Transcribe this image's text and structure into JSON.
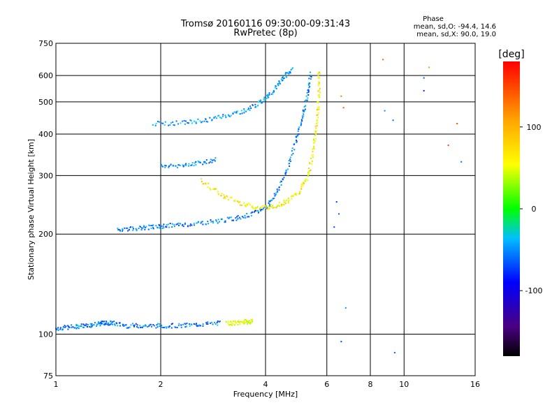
{
  "chart_data": {
    "type": "scatter",
    "title": "Tromsø 20160116 09:30:00-09:31:43",
    "subtitle": "RwPretec (8p)",
    "xlabel": "Frequency [MHz]",
    "ylabel": "Stationary phase Virtual Height [km]",
    "x_scale": "log",
    "y_scale": "log",
    "xlim": [
      1,
      16
    ],
    "ylim": [
      75,
      750
    ],
    "x_ticks": [
      1,
      2,
      4,
      6,
      8,
      10,
      16
    ],
    "y_ticks": [
      75,
      100,
      200,
      300,
      400,
      500,
      600,
      750
    ],
    "grid": true,
    "colorbar": {
      "label": "[deg]",
      "ticks": [
        100,
        0,
        -100
      ],
      "range": [
        -180,
        180
      ]
    },
    "stats": {
      "heading": "Phase",
      "o_line": "mean, sd,O: -94.4, 14.6",
      "x_line": "mean, sd,X:  90.0, 19.0"
    },
    "traces": [
      {
        "name_hint": "E-layer O",
        "phase": -100,
        "points": [
          [
            1.0,
            104
          ],
          [
            1.1,
            105
          ],
          [
            1.2,
            106
          ],
          [
            1.3,
            107
          ],
          [
            1.38,
            108
          ],
          [
            1.45,
            108
          ],
          [
            1.6,
            106
          ],
          [
            1.8,
            106
          ],
          [
            2.0,
            106
          ],
          [
            2.3,
            106
          ],
          [
            2.6,
            107
          ],
          [
            3.0,
            108
          ]
        ]
      },
      {
        "name_hint": "E-layer X",
        "phase": 90,
        "points": [
          [
            3.1,
            108
          ],
          [
            3.3,
            108
          ],
          [
            3.5,
            109
          ],
          [
            3.7,
            109
          ]
        ]
      },
      {
        "name_hint": "F-layer O low",
        "phase": -100,
        "points": [
          [
            1.5,
            207
          ],
          [
            1.7,
            208
          ],
          [
            1.9,
            210
          ],
          [
            2.1,
            212
          ],
          [
            2.4,
            214
          ],
          [
            2.8,
            218
          ],
          [
            3.2,
            222
          ],
          [
            3.6,
            228
          ],
          [
            4.0,
            240
          ],
          [
            4.3,
            265
          ],
          [
            4.6,
            310
          ],
          [
            4.9,
            380
          ],
          [
            5.1,
            450
          ],
          [
            5.3,
            530
          ],
          [
            5.4,
            610
          ]
        ]
      },
      {
        "name_hint": "F-layer X",
        "phase": 100,
        "points": [
          [
            2.6,
            290
          ],
          [
            3.0,
            262
          ],
          [
            3.4,
            248
          ],
          [
            3.8,
            240
          ],
          [
            4.2,
            242
          ],
          [
            4.6,
            250
          ],
          [
            5.0,
            268
          ],
          [
            5.3,
            300
          ],
          [
            5.5,
            360
          ],
          [
            5.6,
            430
          ],
          [
            5.7,
            520
          ],
          [
            5.7,
            620
          ]
        ]
      },
      {
        "name_hint": "F2 echo",
        "phase": -90,
        "points": [
          [
            1.9,
            430
          ],
          [
            2.3,
            432
          ],
          [
            2.7,
            440
          ],
          [
            3.1,
            455
          ],
          [
            3.5,
            470
          ],
          [
            3.9,
            500
          ],
          [
            4.2,
            540
          ],
          [
            4.5,
            590
          ],
          [
            4.8,
            630
          ]
        ]
      },
      {
        "name_hint": "mid echo",
        "phase": -100,
        "points": [
          [
            2.0,
            320
          ],
          [
            2.3,
            322
          ],
          [
            2.6,
            328
          ],
          [
            2.9,
            335
          ]
        ]
      },
      {
        "name_hint": "scatter X",
        "phase": 140,
        "points": [
          [
            8.7,
            670
          ],
          [
            11.8,
            635
          ],
          [
            13.4,
            370
          ],
          [
            14.2,
            430
          ],
          [
            6.6,
            520
          ],
          [
            6.7,
            480
          ]
        ]
      },
      {
        "name_hint": "scatter O",
        "phase": -110,
        "points": [
          [
            6.4,
            250
          ],
          [
            6.5,
            230
          ],
          [
            6.3,
            210
          ],
          [
            6.8,
            120
          ],
          [
            6.6,
            95
          ],
          [
            8.8,
            470
          ],
          [
            9.3,
            440
          ],
          [
            11.4,
            590
          ],
          [
            11.4,
            540
          ],
          [
            14.6,
            330
          ],
          [
            9.4,
            88
          ]
        ]
      }
    ]
  }
}
